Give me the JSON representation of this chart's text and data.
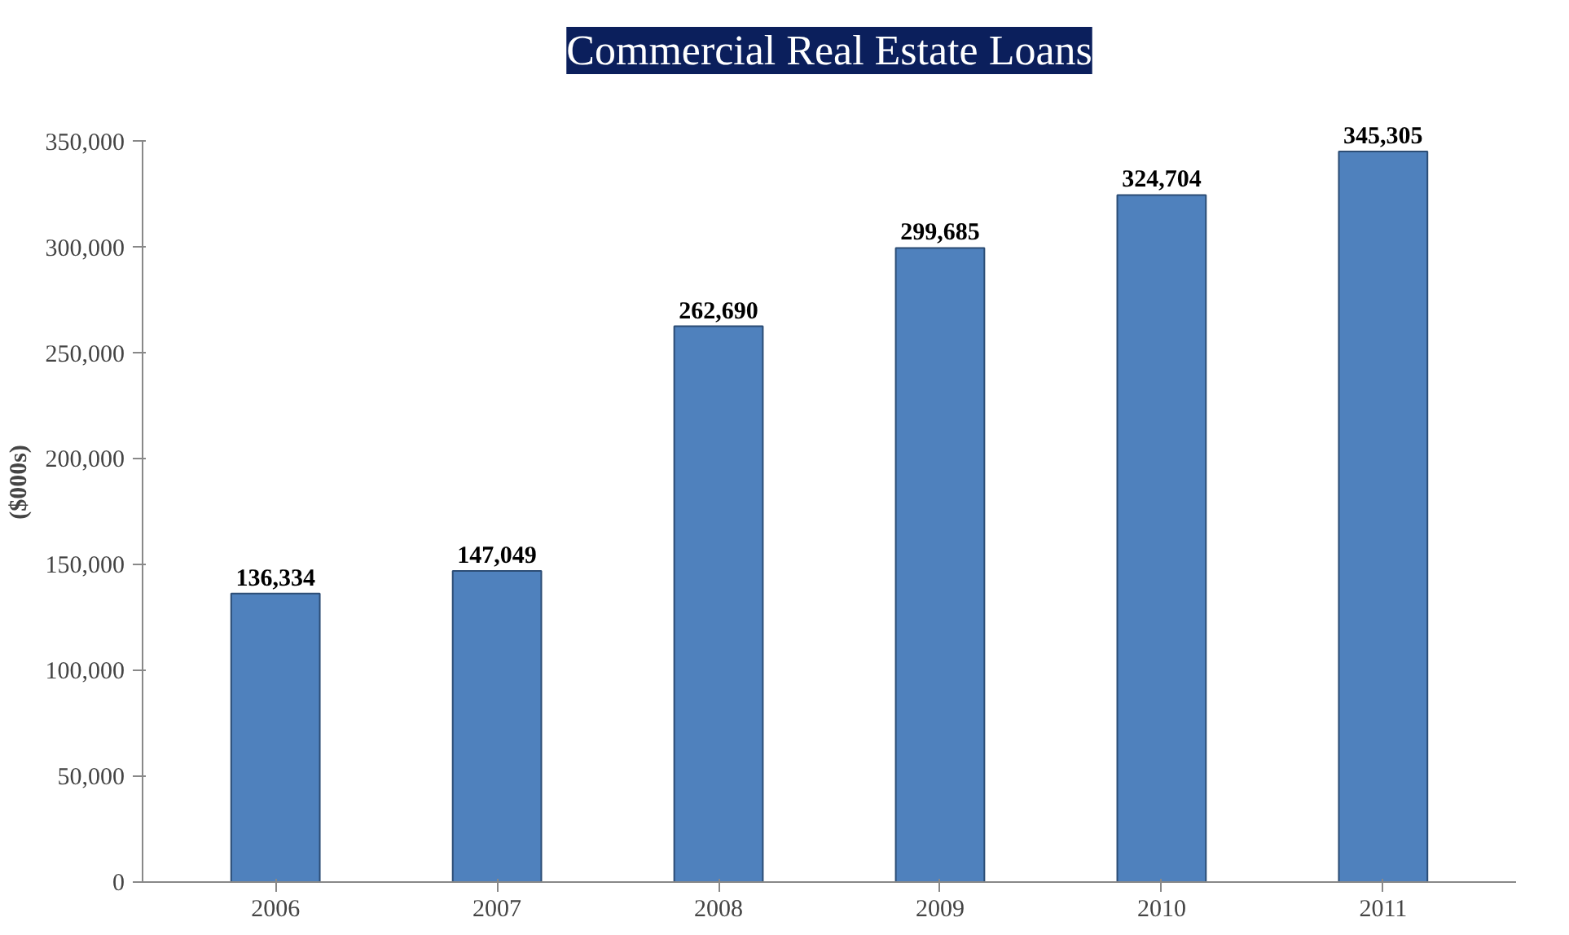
{
  "chart_data": {
    "type": "bar",
    "title": "Commercial Real Estate Loans",
    "ylabel": "($000s)",
    "categories": [
      "2006",
      "2007",
      "2008",
      "2009",
      "2010",
      "2011"
    ],
    "values": [
      136334,
      147049,
      262690,
      299685,
      324704,
      345305
    ],
    "color": "#4f81bd",
    "ylim": [
      0,
      350000
    ],
    "yticks": [
      {
        "value": 0,
        "label": "0"
      },
      {
        "value": 50000,
        "label": "50,000"
      },
      {
        "value": 100000,
        "label": "100,000"
      },
      {
        "value": 150000,
        "label": "150,000"
      },
      {
        "value": 200000,
        "label": "200,000"
      },
      {
        "value": 250000,
        "label": "250,000"
      },
      {
        "value": 300000,
        "label": "300,000"
      },
      {
        "value": 350000,
        "label": "350,000"
      }
    ],
    "value_labels": [
      "136,334",
      "147,049",
      "262,690",
      "299,685",
      "324,704",
      "345,305"
    ],
    "grid": false
  }
}
